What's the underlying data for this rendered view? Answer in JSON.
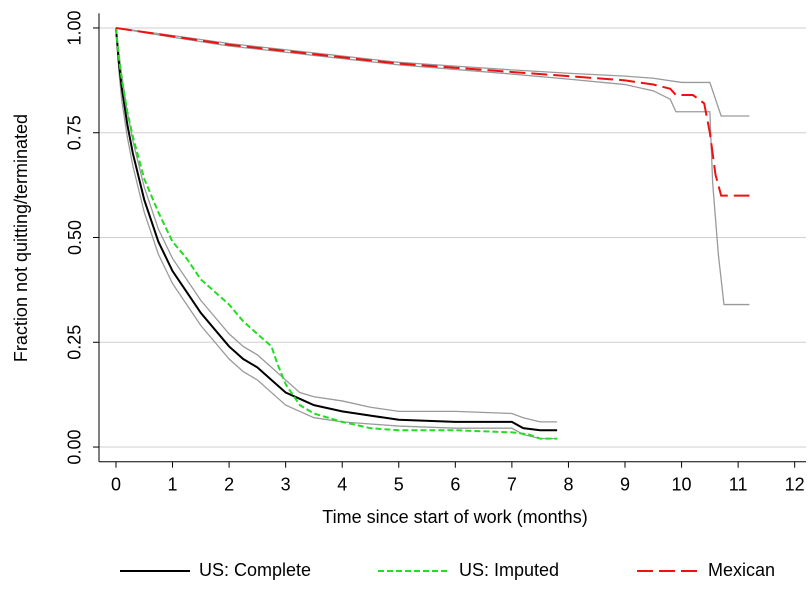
{
  "chart_data": {
    "type": "line",
    "x_label": "Time since start of work (months)",
    "y_label": "Fraction not quitting/terminated",
    "xlim": [
      -0.3,
      12.2
    ],
    "ylim": [
      -0.035,
      1.035
    ],
    "xticks": [
      0,
      1,
      2,
      3,
      4,
      5,
      6,
      7,
      8,
      9,
      10,
      11,
      12
    ],
    "yticks": [
      {
        "value": 0,
        "label": "0.00"
      },
      {
        "value": 0.25,
        "label": "0.25"
      },
      {
        "value": 0.5,
        "label": "0.50"
      },
      {
        "value": 0.75,
        "label": "0.75"
      },
      {
        "value": 1,
        "label": "1.00"
      }
    ],
    "grid": true,
    "series": [
      {
        "name": "US: Complete",
        "color": "#000000",
        "dash": "none",
        "x": [
          0,
          0.05,
          0.1,
          0.2,
          0.3,
          0.5,
          0.75,
          1,
          1.25,
          1.5,
          1.75,
          2,
          2.25,
          2.5,
          2.75,
          3,
          3.25,
          3.5,
          4,
          4.5,
          5,
          6,
          7,
          7.2,
          7.5,
          7.8
        ],
        "values": [
          1.0,
          0.92,
          0.86,
          0.77,
          0.7,
          0.59,
          0.49,
          0.42,
          0.37,
          0.32,
          0.28,
          0.24,
          0.21,
          0.19,
          0.16,
          0.13,
          0.115,
          0.1,
          0.085,
          0.075,
          0.065,
          0.06,
          0.06,
          0.045,
          0.04,
          0.04
        ]
      },
      {
        "name": "US: Imputed",
        "color": "#22dd22",
        "dash": "6 3",
        "x": [
          0,
          0.05,
          0.1,
          0.2,
          0.3,
          0.5,
          0.75,
          1,
          1.25,
          1.5,
          1.75,
          2,
          2.25,
          2.5,
          2.75,
          2.85,
          3,
          3.25,
          3.5,
          4,
          4.5,
          5,
          6,
          7,
          7.3,
          7.5,
          7.8
        ],
        "values": [
          1.0,
          0.93,
          0.88,
          0.8,
          0.74,
          0.64,
          0.56,
          0.49,
          0.45,
          0.4,
          0.37,
          0.34,
          0.3,
          0.27,
          0.24,
          0.2,
          0.15,
          0.1,
          0.08,
          0.06,
          0.045,
          0.04,
          0.04,
          0.035,
          0.03,
          0.02,
          0.02
        ]
      },
      {
        "name": "Mexican",
        "color": "#ee1111",
        "dash": "16 6",
        "x": [
          0,
          1,
          2,
          3,
          4,
          5,
          6,
          7,
          8,
          9,
          9.5,
          9.8,
          9.9,
          10.2,
          10.4,
          10.5,
          10.6,
          10.7,
          11.2
        ],
        "values": [
          1.0,
          0.98,
          0.96,
          0.945,
          0.93,
          0.915,
          0.905,
          0.895,
          0.885,
          0.875,
          0.865,
          0.855,
          0.84,
          0.84,
          0.82,
          0.75,
          0.65,
          0.6,
          0.6
        ]
      }
    ],
    "bands": [
      {
        "color": "#9a9a9a",
        "x": [
          0,
          0.05,
          0.1,
          0.2,
          0.3,
          0.5,
          0.75,
          1,
          1.25,
          1.5,
          1.75,
          2,
          2.25,
          2.5,
          2.75,
          3,
          3.25,
          3.5,
          4,
          4.5,
          5,
          6,
          7,
          7.2,
          7.5,
          7.8
        ],
        "values": [
          1.0,
          0.94,
          0.89,
          0.8,
          0.73,
          0.62,
          0.52,
          0.45,
          0.4,
          0.35,
          0.31,
          0.27,
          0.24,
          0.22,
          0.19,
          0.16,
          0.13,
          0.12,
          0.11,
          0.095,
          0.085,
          0.085,
          0.08,
          0.07,
          0.06,
          0.06
        ]
      },
      {
        "color": "#9a9a9a",
        "x": [
          0,
          0.05,
          0.1,
          0.2,
          0.3,
          0.5,
          0.75,
          1,
          1.25,
          1.5,
          1.75,
          2,
          2.25,
          2.5,
          2.75,
          3,
          3.25,
          3.5,
          4,
          4.5,
          5,
          6,
          7,
          7.2,
          7.5,
          7.8
        ],
        "values": [
          1.0,
          0.9,
          0.83,
          0.74,
          0.67,
          0.56,
          0.46,
          0.39,
          0.34,
          0.29,
          0.25,
          0.21,
          0.18,
          0.16,
          0.13,
          0.1,
          0.085,
          0.07,
          0.06,
          0.055,
          0.05,
          0.045,
          0.045,
          0.03,
          0.02,
          0.02
        ]
      },
      {
        "color": "#9a9a9a",
        "x": [
          0,
          1,
          2,
          3,
          4,
          5,
          6,
          7,
          8,
          9,
          9.5,
          10,
          10.5,
          10.7,
          11.2
        ],
        "values": [
          1.0,
          0.982,
          0.963,
          0.948,
          0.933,
          0.918,
          0.909,
          0.9,
          0.892,
          0.885,
          0.88,
          0.87,
          0.87,
          0.79,
          0.79
        ]
      },
      {
        "color": "#9a9a9a",
        "x": [
          0,
          1,
          2,
          3,
          4,
          5,
          6,
          7,
          8,
          9,
          9.5,
          9.8,
          9.9,
          10.5,
          10.55,
          10.65,
          10.75,
          11.2
        ],
        "values": [
          1.0,
          0.978,
          0.957,
          0.942,
          0.927,
          0.912,
          0.901,
          0.89,
          0.878,
          0.865,
          0.85,
          0.83,
          0.8,
          0.8,
          0.63,
          0.46,
          0.34,
          0.34
        ]
      }
    ]
  }
}
